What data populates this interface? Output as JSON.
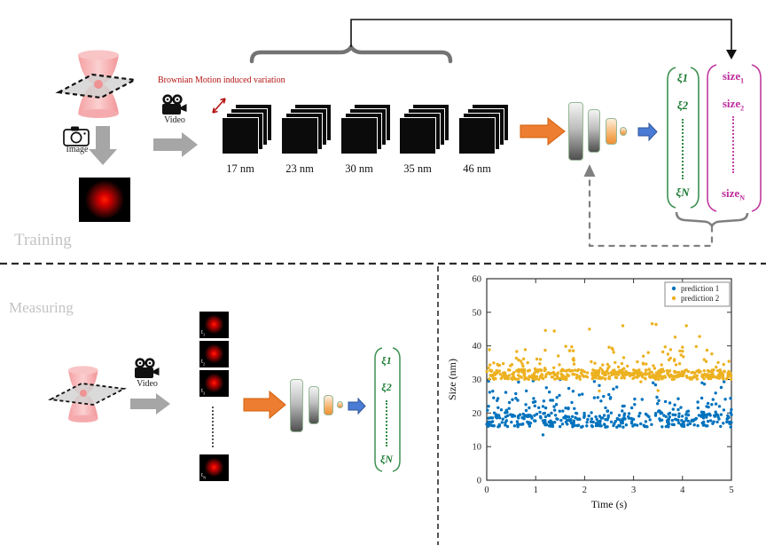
{
  "colors": {
    "gray_arrow": "#a6a6a6",
    "orange_arrow": "#ed7d31",
    "blue_arrow": "#4a7cd6",
    "green_text": "#1b7b33",
    "magenta_text": "#be2c9c",
    "red_annotation": "#b41414",
    "matlab_blue": "#0072BD",
    "matlab_yellow": "#EDB120"
  },
  "icons": {
    "image_source": "photo-camera-icon",
    "video_source": "video-camera-icon"
  },
  "training": {
    "section_label": "Training",
    "camera_caption": "Image",
    "video_caption": "Video",
    "annotation": "Brownian Motion induced variation",
    "size_classes": [
      "17 nm",
      "23 nm",
      "30 nm",
      "35 nm",
      "46 nm"
    ],
    "feature_vector": {
      "items": [
        "ξ1",
        "ξ2"
      ],
      "last": "ξN"
    },
    "size_vector": {
      "items": [
        {
          "base": "size",
          "sub": "1"
        },
        {
          "base": "size",
          "sub": "2"
        }
      ],
      "last": {
        "base": "size",
        "sub": "N"
      }
    }
  },
  "measuring": {
    "section_label": "Measuring",
    "video_caption": "Video",
    "frame_labels": [
      {
        "base": "t",
        "sub": "1"
      },
      {
        "base": "t",
        "sub": "2"
      },
      {
        "base": "t",
        "sub": "3"
      }
    ],
    "last_frame_label": {
      "base": "t",
      "sub": "N"
    },
    "feature_vector": {
      "items": [
        "ξ1",
        "ξ2"
      ],
      "last": "ξN"
    }
  },
  "chart_data": {
    "type": "scatter",
    "title": "",
    "xlabel": "Time (s)",
    "ylabel": "Size (nm)",
    "xlim": [
      0,
      5
    ],
    "ylim": [
      0,
      60
    ],
    "xticks": [
      0,
      1,
      2,
      3,
      4,
      5
    ],
    "yticks": [
      0,
      10,
      20,
      30,
      40,
      50,
      60
    ],
    "grid": false,
    "legend": {
      "position": "top-right",
      "entries": [
        {
          "label": "prediction 1",
          "color": "#0072BD"
        },
        {
          "label": "prediction 2",
          "color": "#EDB120"
        }
      ]
    },
    "series": [
      {
        "name": "prediction 1",
        "color": "#0072BD",
        "marker": "dot",
        "n": 430,
        "seed": 7,
        "x_range": [
          0,
          5
        ],
        "y_mean": 17.5,
        "bands": [
          {
            "frac": 0.72,
            "y": [
              15.8,
              20.0
            ]
          },
          {
            "frac": 0.21,
            "y": [
              19.8,
              25.0
            ]
          },
          {
            "frac": 0.07,
            "y": [
              24.0,
              28.0
            ]
          }
        ],
        "outliers": [
          [
            0.04,
            29.5
          ],
          [
            0.06,
            26.2
          ],
          [
            0.65,
            29.2
          ],
          [
            0.95,
            29.6
          ],
          [
            1.5,
            30.0
          ],
          [
            2.2,
            29.4
          ],
          [
            2.3,
            28.2
          ],
          [
            3.4,
            29.0
          ],
          [
            3.45,
            28.4
          ],
          [
            4.4,
            29.0
          ],
          [
            4.45,
            28.6
          ],
          [
            4.85,
            29.3
          ],
          [
            1.15,
            13.5
          ]
        ]
      },
      {
        "name": "prediction 2",
        "color": "#EDB120",
        "marker": "dot",
        "n": 520,
        "seed": 13,
        "x_range": [
          0,
          5
        ],
        "y_mean": 31.5,
        "bands": [
          {
            "frac": 0.8,
            "y": [
              30.0,
              32.9
            ]
          },
          {
            "frac": 0.14,
            "y": [
              32.5,
              36.0
            ]
          },
          {
            "frac": 0.06,
            "y": [
              35.5,
              40.0
            ]
          }
        ],
        "outliers": [
          [
            1.2,
            44.6
          ],
          [
            1.38,
            44.4
          ],
          [
            2.1,
            45.0
          ],
          [
            2.78,
            46.0
          ],
          [
            3.38,
            46.6
          ],
          [
            3.46,
            46.4
          ],
          [
            4.08,
            46.0
          ],
          [
            3.85,
            42.6
          ],
          [
            4.35,
            42.8
          ],
          [
            0.65,
            35.8
          ],
          [
            2.5,
            39.6
          ],
          [
            2.56,
            39.3
          ],
          [
            4.0,
            39.6
          ],
          [
            4.5,
            38.7
          ],
          [
            2.3,
            26.6
          ],
          [
            3.5,
            26.7
          ],
          [
            3.15,
            29.3
          ],
          [
            1.7,
            38.6
          ],
          [
            3.3,
            38.0
          ],
          [
            3.6,
            38.2
          ],
          [
            4.6,
            37.6
          ],
          [
            4.95,
            35.4
          ]
        ]
      }
    ]
  }
}
